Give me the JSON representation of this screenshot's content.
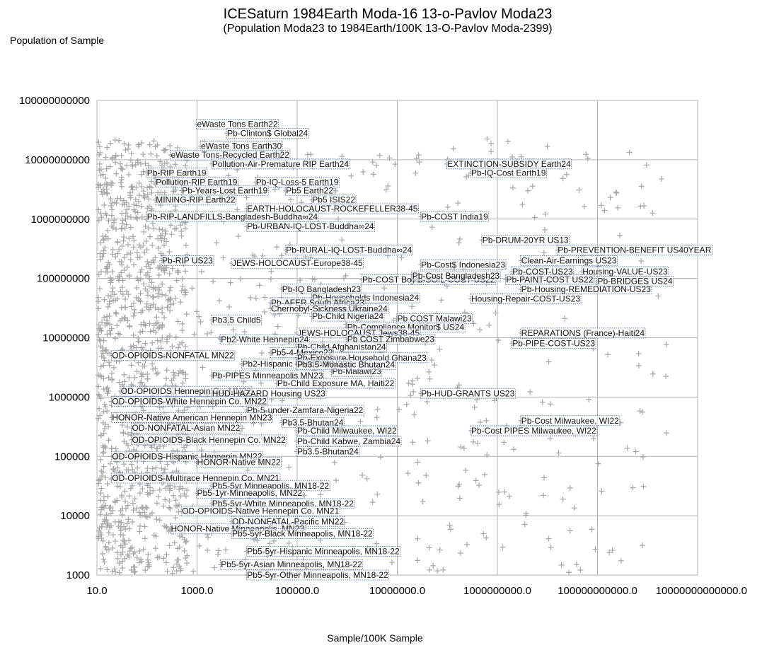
{
  "chart_data": {
    "type": "scatter",
    "title": "ICESaturn 1984Earth Moda-16 13-o-Pavlov Moda23",
    "subtitle": "(Population Moda23 to 1984Earth/100K 13-O-Pavlov Moda-2399)",
    "xlabel": "Sample/100K Sample",
    "ylabel": "Population of Sample",
    "x_scale": "log",
    "y_scale": "log",
    "xlim": [
      10,
      10000000000000
    ],
    "ylim": [
      1000,
      100000000000
    ],
    "x_ticks": [
      "10.0",
      "1000.0",
      "100000.0",
      "10000000.0",
      "1000000000.0",
      "100000000000.0",
      "10000000000000.0"
    ],
    "y_ticks": [
      "100000000000",
      "10000000000",
      "1000000000",
      "100000000",
      "10000000",
      "1000000",
      "100000",
      "10000",
      "1000"
    ],
    "grid": true,
    "marker": "plus",
    "marker_color": "#a6a6a6",
    "annotation_color": "#3a5f9f",
    "annotations": [
      {
        "text": "eWaste Tons Earth22",
        "x": 1000,
        "y": 40000000000
      },
      {
        "text": "Pb-Clinton$ Global24",
        "x": 4000,
        "y": 28000000000
      },
      {
        "text": "eWaste Tons Earth30",
        "x": 1200,
        "y": 17000000000
      },
      {
        "text": "eWaste Tons-Recycled Earth22",
        "x": 300,
        "y": 12000000000
      },
      {
        "text": "Pollution-Air-Premature RIP Earth24",
        "x": 2000,
        "y": 8500000000
      },
      {
        "text": "EXTINCTION-SUBSIDY Earth24",
        "x": 100000000,
        "y": 8500000000
      },
      {
        "text": "Pb-RIP Earth19",
        "x": 100,
        "y": 6000000000
      },
      {
        "text": "Pb-IQ-Cost Earth19",
        "x": 300000000,
        "y": 6000000000
      },
      {
        "text": "Pollution-RIP Earth19",
        "x": 150,
        "y": 4200000000
      },
      {
        "text": "Pb-IQ-Loss-5 Earth19",
        "x": 15000,
        "y": 4200000000
      },
      {
        "text": "Pb-Years-Lost Earth19",
        "x": 500,
        "y": 3000000000
      },
      {
        "text": "Pb5 Earth22",
        "x": 60000,
        "y": 3000000000
      },
      {
        "text": "MINING-RIP Earth22",
        "x": 150,
        "y": 2100000000
      },
      {
        "text": "Pb5 ISIS22",
        "x": 200000,
        "y": 2100000000
      },
      {
        "text": "EARTH-HOLOCAUST-ROCKEFELLER38-45",
        "x": 10000,
        "y": 1500000000
      },
      {
        "text": "Pb-RIP-LANDFILLS-Bangladesh-Buddha∞24",
        "x": 100,
        "y": 1100000000
      },
      {
        "text": "Pb-COST India19",
        "x": 30000000,
        "y": 1100000000
      },
      {
        "text": "Pb-URBAN-IQ-LOST-Buddha∞24",
        "x": 10000,
        "y": 750000000
      },
      {
        "text": "Pb-DRUM-20YR US13",
        "x": 500000000,
        "y": 440000000
      },
      {
        "text": "Pb-RURAL-IQ-LOST-Buddha∞24",
        "x": 60000,
        "y": 300000000
      },
      {
        "text": "Pb-PREVENTION-BENEFIT US40YEAR",
        "x": 16000000000,
        "y": 300000000
      },
      {
        "text": "Pb-RIP US23",
        "x": 200,
        "y": 200000000
      },
      {
        "text": "Clean-Air-Earnings US23",
        "x": 3000000000,
        "y": 200000000
      },
      {
        "text": "JEWS-HOLOCAUST-Europe38-45",
        "x": 5000,
        "y": 180000000
      },
      {
        "text": "Pb-Cost$ Indonesia23",
        "x": 30000000,
        "y": 170000000
      },
      {
        "text": "Pb-COST-US23",
        "x": 2000000000,
        "y": 130000000
      },
      {
        "text": "Housing-VALUE-US23",
        "x": 50000000000,
        "y": 130000000
      },
      {
        "text": "Pb-COST Boy23",
        "x": 2000000,
        "y": 95000000
      },
      {
        "text": "Pb-SOIL-COST-US22",
        "x": 20000000,
        "y": 95000000
      },
      {
        "text": "Pb-PAINT-COST US22",
        "x": 1500000000,
        "y": 95000000
      },
      {
        "text": "Pb-Cost Bangladesh23",
        "x": 20000000,
        "y": 110000000
      },
      {
        "text": "Pb-IQ Bangladesh23",
        "x": 50000,
        "y": 66000000
      },
      {
        "text": "Pb-Housing-REMEDIATION-US23",
        "x": 3000000000,
        "y": 66000000
      },
      {
        "text": "Housing-Repair-COST-US23",
        "x": 300000000,
        "y": 45000000
      },
      {
        "text": "Pb-Households Indonesia24",
        "x": 200000,
        "y": 47000000
      },
      {
        "text": "Pb-AFER South Africa23",
        "x": 30000,
        "y": 39000000
      },
      {
        "text": "Chernobyl-Sickness Ukraine24",
        "x": 30000,
        "y": 31000000
      },
      {
        "text": "Pb-Child Nigeria24",
        "x": 200000,
        "y": 23000000
      },
      {
        "text": "Pb COST Malawi23",
        "x": 10000000,
        "y": 21000000
      },
      {
        "text": "Pb3.5 Child5",
        "x": 2000,
        "y": 20000000
      },
      {
        "text": "Pb-Compliance Monitor$ US24",
        "x": 1000000,
        "y": 15000000
      },
      {
        "text": "JEWS-HOLOCAUST Jews38-45",
        "x": 100000,
        "y": 12000000
      },
      {
        "text": "REPARATIONS (France)-Haiti24",
        "x": 3000000000,
        "y": 12000000
      },
      {
        "text": "Pb COST Zimbabwe23",
        "x": 1000000,
        "y": 9500000
      },
      {
        "text": "Pb2-White Hennepin24",
        "x": 3000,
        "y": 9300000
      },
      {
        "text": "Pb-PIPE-COST-US23",
        "x": 2000000000,
        "y": 8000000
      },
      {
        "text": "Pb-Child Afghanistan24",
        "x": 100000,
        "y": 7000000
      },
      {
        "text": "Pb5-4-Mexico22",
        "x": 30000,
        "y": 5600000
      },
      {
        "text": "OD-OPIOIDS-NONFATAL MN22",
        "x": 20,
        "y": 5000000
      },
      {
        "text": "Pb-Exposure Household Ghana23",
        "x": 100000,
        "y": 4600000
      },
      {
        "text": "Pb2-Hispanic Child-0 MN23",
        "x": 8000,
        "y": 3600000
      },
      {
        "text": "Pb-Malawi23",
        "x": 500000,
        "y": 2700000
      },
      {
        "text": "Pb-PIPES Minneapolis MN23",
        "x": 2000,
        "y": 2300000
      },
      {
        "text": "Pb-Child Exposure MA, Haiti22",
        "x": 40000,
        "y": 1700000
      },
      {
        "text": "OD-OPIOIDS Hennepin Co. MN22",
        "x": 30,
        "y": 1250000
      },
      {
        "text": "HUD-HAZARD Housing US23",
        "x": 2000,
        "y": 1150000
      },
      {
        "text": "Pb-HUD-GRANTS US23",
        "x": 30000000,
        "y": 1150000
      },
      {
        "text": "OD-OPIOIDS-White Hennepin Co. MN22",
        "x": 20,
        "y": 850000
      },
      {
        "text": "Pb-5-under-Zamfara-Nigeria22",
        "x": 10000,
        "y": 600000
      },
      {
        "text": "HONOR-Native American Hennepin MN23",
        "x": 20,
        "y": 450000
      },
      {
        "text": "Pb-Cost Milwaukee, WI22",
        "x": 3000000000,
        "y": 400000
      },
      {
        "text": "Pb3.5-Bhutan24",
        "x": 50000,
        "y": 370000
      },
      {
        "text": "OD-NONFATAL-Asian MN22",
        "x": 50,
        "y": 300000
      },
      {
        "text": "Pb-Child Milwaukee, WI22",
        "x": 100000,
        "y": 270000
      },
      {
        "text": "Pb-Cost PIPES Milwaukee, WI22",
        "x": 300000000,
        "y": 270000
      },
      {
        "text": "OD-OPIOIDS-Black Hennepin Co. MN22",
        "x": 50,
        "y": 190000
      },
      {
        "text": "Pb-Child Kabwe, Zambia24",
        "x": 100000,
        "y": 180000
      },
      {
        "text": "Pb3.5-Bhutan24",
        "x": 100000,
        "y": 120000
      },
      {
        "text": "OD-OPIOIDS-Hispanic Hennepin MN22",
        "x": 20,
        "y": 100000
      },
      {
        "text": "Pb-BRIDGES US24",
        "x": 100000000000,
        "y": 90000000
      },
      {
        "text": "HONOR-Native MN22",
        "x": 1000,
        "y": 80000
      },
      {
        "text": "OD-OPIOIDS-Multirace Hennepin Co. MN21",
        "x": 20,
        "y": 43000
      },
      {
        "text": "Pb5-5yr Minneapolis, MN18-22",
        "x": 2000,
        "y": 32000
      },
      {
        "text": "Pb5-1yr-Minneapolis, MN22",
        "x": 1000,
        "y": 24000
      },
      {
        "text": "Pb5-5yr-White Minneapolis, MN18-22",
        "x": 2000,
        "y": 16000
      },
      {
        "text": "OD-OPIOIDS-Native Hennepin Co. MN21",
        "x": 500,
        "y": 12000
      },
      {
        "text": "OD-NONFATAL-Pacific MN22",
        "x": 5000,
        "y": 8000
      },
      {
        "text": "HONOR-Native Minneapolis, MN23",
        "x": 300,
        "y": 6000
      },
      {
        "text": "Pb5-5yr-Black Minneapolis, MN18-22",
        "x": 5000,
        "y": 5000
      },
      {
        "text": "Pb3.5-Monastic Bhutan24",
        "x": 100000,
        "y": 3500000
      },
      {
        "text": "Pb5-5yr-Hispanic Minneapolis, MN18-22",
        "x": 10000,
        "y": 2500
      },
      {
        "text": "Pb5-5yr-Asian Minneapolis, MN18-22",
        "x": 3000,
        "y": 1500
      },
      {
        "text": "Pb5-5yr-Other Minneapolis, MN18-22",
        "x": 10000,
        "y": 1000
      }
    ]
  }
}
